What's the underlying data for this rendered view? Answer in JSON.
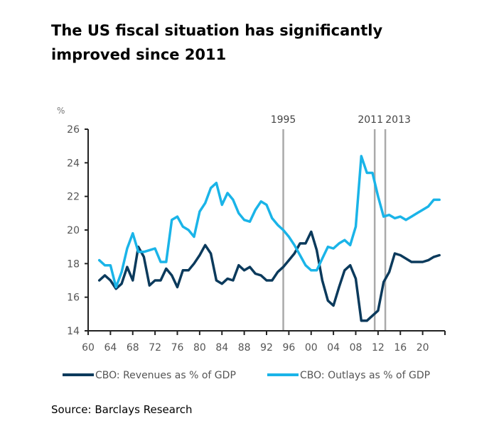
{
  "title": "The US fiscal situation has significantly improved since 2011",
  "source": "Source: Barclays Research",
  "chart_data": {
    "type": "line",
    "title": "The US fiscal situation has significantly improved since 2011",
    "xlabel": "",
    "ylabel": "%",
    "xlim": [
      1960,
      2024
    ],
    "ylim": [
      14,
      26
    ],
    "y_ticks": [
      14,
      16,
      18,
      20,
      22,
      24,
      26
    ],
    "x_ticks": [
      1960,
      1964,
      1968,
      1972,
      1976,
      1980,
      1984,
      1988,
      1992,
      1996,
      2000,
      2004,
      2008,
      2012,
      2016,
      2020,
      2024
    ],
    "x_tick_labels": [
      "60",
      "64",
      "68",
      "72",
      "76",
      "80",
      "84",
      "88",
      "92",
      "96",
      "00",
      "04",
      "08",
      "12",
      "16",
      "20",
      ""
    ],
    "grid": false,
    "legend_position": "bottom",
    "annotations": [
      {
        "label": "1995",
        "x": 1995
      },
      {
        "label": "2011",
        "x": 2011.4
      },
      {
        "label": "2013",
        "x": 2013.3
      }
    ],
    "x": [
      1962,
      1963,
      1964,
      1965,
      1966,
      1967,
      1968,
      1969,
      1970,
      1971,
      1972,
      1973,
      1974,
      1975,
      1976,
      1977,
      1978,
      1979,
      1980,
      1981,
      1982,
      1983,
      1984,
      1985,
      1986,
      1987,
      1988,
      1989,
      1990,
      1991,
      1992,
      1993,
      1994,
      1995,
      1996,
      1997,
      1998,
      1999,
      2000,
      2001,
      2002,
      2003,
      2004,
      2005,
      2006,
      2007,
      2008,
      2009,
      2010,
      2011,
      2012,
      2013,
      2014,
      2015,
      2016,
      2017,
      2018,
      2019,
      2020,
      2021,
      2022,
      2023
    ],
    "series": [
      {
        "name": "CBO: Revenues as % of GDP",
        "color": "#0b3a5c",
        "values": [
          17.0,
          17.3,
          17.0,
          16.5,
          16.8,
          17.8,
          17.0,
          19.0,
          18.4,
          16.7,
          17.0,
          17.0,
          17.7,
          17.3,
          16.6,
          17.6,
          17.6,
          18.0,
          18.5,
          19.1,
          18.6,
          17.0,
          16.8,
          17.1,
          17.0,
          17.9,
          17.6,
          17.8,
          17.4,
          17.3,
          17.0,
          17.0,
          17.5,
          17.8,
          18.2,
          18.6,
          19.2,
          19.2,
          19.9,
          18.8,
          17.0,
          15.8,
          15.5,
          16.6,
          17.6,
          17.9,
          17.1,
          14.6,
          14.6,
          14.9,
          15.2,
          16.9,
          17.5,
          18.6,
          18.5,
          18.3,
          18.1,
          18.1,
          18.1,
          18.2,
          18.4,
          18.5
        ]
      },
      {
        "name": "CBO: Outlays as % of GDP",
        "color": "#1ab4e8",
        "values": [
          18.2,
          17.9,
          17.9,
          16.6,
          17.5,
          18.9,
          19.8,
          18.7,
          18.7,
          18.8,
          18.9,
          18.1,
          18.1,
          20.6,
          20.8,
          20.2,
          20.0,
          19.6,
          21.1,
          21.6,
          22.5,
          22.8,
          21.5,
          22.2,
          21.8,
          21.0,
          20.6,
          20.5,
          21.2,
          21.7,
          21.5,
          20.7,
          20.3,
          20.0,
          19.6,
          19.1,
          18.5,
          17.9,
          17.6,
          17.6,
          18.3,
          19.0,
          18.9,
          19.2,
          19.4,
          19.1,
          20.2,
          24.4,
          23.4,
          23.4,
          22.0,
          20.8,
          20.9,
          20.7,
          20.8,
          20.6,
          20.8,
          21.0,
          21.2,
          21.4,
          21.8,
          21.8
        ]
      }
    ]
  }
}
